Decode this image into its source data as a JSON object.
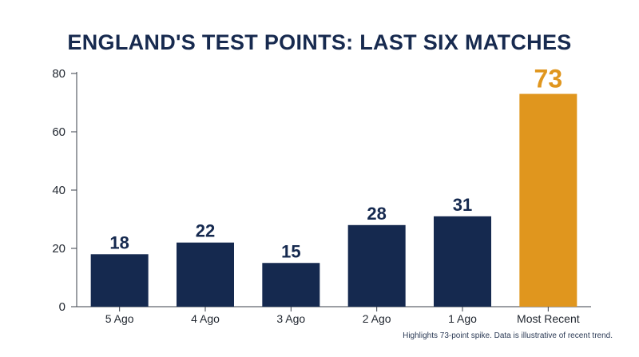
{
  "chart_data": {
    "type": "bar",
    "title": "ENGLAND'S TEST POINTS: LAST SIX MATCHES",
    "categories": [
      "5 Ago",
      "4 Ago",
      "3 Ago",
      "2 Ago",
      "1 Ago",
      "Most Recent"
    ],
    "values": [
      18,
      22,
      15,
      28,
      31,
      73
    ],
    "highlight_index": 5,
    "ylim": [
      0,
      80
    ],
    "yticks": [
      0,
      20,
      40,
      60,
      80
    ],
    "grid": false,
    "xlabel": "",
    "ylabel": "",
    "colors": {
      "bar": "#15294f",
      "highlight": "#e0961e",
      "label": "#15294f",
      "highlight_label": "#e0961e",
      "axis": "#3a3f4a"
    },
    "footnote": "Highlights 73-point spike. Data is illustrative of recent trend."
  }
}
